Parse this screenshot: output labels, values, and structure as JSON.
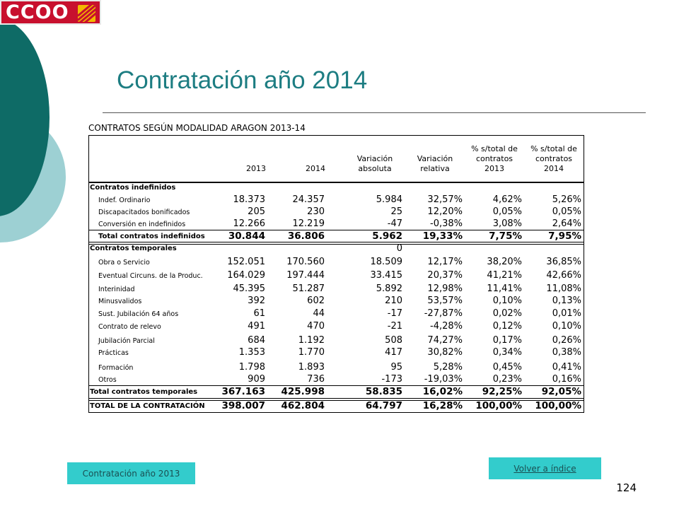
{
  "logo": {
    "text": "CCOO"
  },
  "title": "Contratación año 2014",
  "table": {
    "title": "CONTRATOS SEGÚN MODALIDAD ARAGON 2013-14",
    "headers": [
      "2013",
      "2014",
      "Variación\nabsoluta",
      "Variación\nrelativa",
      "% s/total de\ncontratos\n2013",
      "% s/total de\ncontratos\n2014"
    ],
    "rows": [
      {
        "label": "Contratos indefinidos",
        "type": "section",
        "values": [
          "",
          "",
          "",
          "",
          "",
          ""
        ]
      },
      {
        "label": "Indef. Ordinario",
        "type": "item",
        "values": [
          "18.373",
          "24.357",
          "5.984",
          "32,57%",
          "4,62%",
          "5,26%"
        ]
      },
      {
        "label": "Discapacitados bonificados",
        "type": "item",
        "values": [
          "205",
          "230",
          "25",
          "12,20%",
          "0,05%",
          "0,05%"
        ]
      },
      {
        "label": "Conversión en indefinidos",
        "type": "item",
        "values": [
          "12.266",
          "12.219",
          "-47",
          "-0,38%",
          "3,08%",
          "2,64%"
        ]
      },
      {
        "label": "Total contratos indefinidos",
        "type": "total",
        "values": [
          "30.844",
          "36.806",
          "5.962",
          "19,33%",
          "7,75%",
          "7,95%"
        ]
      },
      {
        "label": "Contratos temporales",
        "type": "section",
        "values": [
          "",
          "",
          "0",
          "",
          "",
          ""
        ]
      },
      {
        "label": "Obra o Servicio",
        "type": "item",
        "values": [
          "152.051",
          "170.560",
          "18.509",
          "12,17%",
          "38,20%",
          "36,85%"
        ]
      },
      {
        "label": "Eventual Circuns. de la Produc.",
        "type": "item",
        "values": [
          "164.029",
          "197.444",
          "33.415",
          "20,37%",
          "41,21%",
          "42,66%"
        ]
      },
      {
        "label": "Interinidad",
        "type": "item",
        "values": [
          "45.395",
          "51.287",
          "5.892",
          "12,98%",
          "11,41%",
          "11,08%"
        ]
      },
      {
        "label": "Minusvalidos",
        "type": "item",
        "values": [
          "392",
          "602",
          "210",
          "53,57%",
          "0,10%",
          "0,13%"
        ]
      },
      {
        "label": "Sust. Jubilación 64 años",
        "type": "item",
        "values": [
          "61",
          "44",
          "-17",
          "-27,87%",
          "0,02%",
          "0,01%"
        ]
      },
      {
        "label": "Contrato de relevo",
        "type": "item",
        "values": [
          "491",
          "470",
          "-21",
          "-4,28%",
          "0,12%",
          "0,10%"
        ]
      },
      {
        "label": "Jubilación Parcial",
        "type": "item",
        "values": [
          "684",
          "1.192",
          "508",
          "74,27%",
          "0,17%",
          "0,26%"
        ]
      },
      {
        "label": "Prácticas",
        "type": "item",
        "values": [
          "1.353",
          "1.770",
          "417",
          "30,82%",
          "0,34%",
          "0,38%"
        ]
      },
      {
        "label": "Formación",
        "type": "item",
        "values": [
          "1.798",
          "1.893",
          "95",
          "5,28%",
          "0,45%",
          "0,41%"
        ]
      },
      {
        "label": "Otros",
        "type": "item",
        "values": [
          "909",
          "736",
          "-173",
          "-19,03%",
          "0,23%",
          "0,16%"
        ]
      },
      {
        "label": "Total contratos temporales",
        "type": "total",
        "values": [
          "367.163",
          "425.998",
          "58.835",
          "16,02%",
          "92,25%",
          "92,05%"
        ]
      },
      {
        "label": "TOTAL DE LA CONTRATACIÓN",
        "type": "total",
        "values": [
          "398.007",
          "462.804",
          "64.797",
          "16,28%",
          "100,00%",
          "100,00%"
        ]
      }
    ]
  },
  "buttons": {
    "prev": "Contratación año 2013",
    "index": "Volver a índice"
  },
  "page_number": "124",
  "colors": {
    "teal_dark": "#0e6b66",
    "teal_light": "#9dd0d3",
    "title": "#1d7d82",
    "button": "#33cccc",
    "logo_red": "#c8102e"
  }
}
